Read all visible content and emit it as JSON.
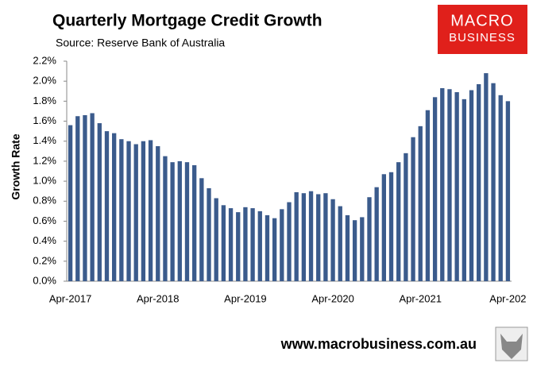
{
  "chart_data": {
    "type": "bar",
    "title": "Quarterly Mortgage Credit Growth",
    "subtitle": "Source: Reserve Bank of Australia",
    "y_label": "Growth Rate",
    "logo": [
      "MACRO",
      "BUSINESS"
    ],
    "footer": "www.macrobusiness.com.au",
    "color": "#3b5b8c",
    "categories": [
      "Apr-2017",
      null,
      null,
      null,
      null,
      null,
      null,
      null,
      null,
      null,
      null,
      null,
      "Apr-2018",
      null,
      null,
      null,
      null,
      null,
      null,
      null,
      null,
      null,
      null,
      null,
      "Apr-2019",
      null,
      null,
      null,
      null,
      null,
      null,
      null,
      null,
      null,
      null,
      null,
      "Apr-2020",
      null,
      null,
      null,
      null,
      null,
      null,
      null,
      null,
      null,
      null,
      null,
      "Apr-2021",
      null,
      null,
      null,
      null,
      null,
      null,
      null,
      null,
      null,
      null,
      null,
      "Apr-202"
    ],
    "values": [
      1.56,
      1.65,
      1.66,
      1.68,
      1.58,
      1.5,
      1.48,
      1.42,
      1.4,
      1.37,
      1.4,
      1.41,
      1.35,
      1.25,
      1.19,
      1.2,
      1.19,
      1.16,
      1.03,
      0.93,
      0.83,
      0.76,
      0.73,
      0.69,
      0.74,
      0.73,
      0.7,
      0.66,
      0.63,
      0.72,
      0.79,
      0.89,
      0.88,
      0.9,
      0.87,
      0.88,
      0.82,
      0.75,
      0.66,
      0.61,
      0.64,
      0.84,
      0.94,
      1.07,
      1.09,
      1.19,
      1.28,
      1.44,
      1.55,
      1.71,
      1.84,
      1.93,
      1.92,
      1.89,
      1.82,
      1.91,
      1.97,
      2.08,
      1.98,
      1.86,
      1.8
    ],
    "ylim": [
      0,
      2.2
    ],
    "yticks": [
      {
        "value": 0,
        "label": "0.0%"
      },
      {
        "value": 0.2,
        "label": "0.2%"
      },
      {
        "value": 0.4,
        "label": "0.4%"
      },
      {
        "value": 0.6,
        "label": "0.6%"
      },
      {
        "value": 0.8,
        "label": "0.8%"
      },
      {
        "value": 1.0,
        "label": "1.0%"
      },
      {
        "value": 1.2,
        "label": "1.2%"
      },
      {
        "value": 1.4,
        "label": "1.4%"
      },
      {
        "value": 1.6,
        "label": "1.6%"
      },
      {
        "value": 1.8,
        "label": "1.8%"
      },
      {
        "value": 2.0,
        "label": "2.0%"
      },
      {
        "value": 2.2,
        "label": "2.2%"
      }
    ],
    "grid": false
  }
}
